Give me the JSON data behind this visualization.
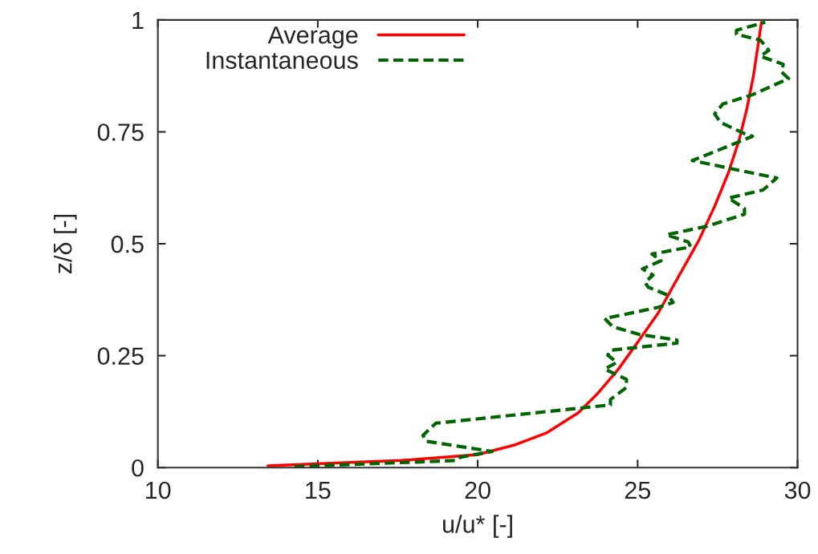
{
  "chart_data": {
    "type": "line",
    "xlabel": "u/u* [-]",
    "ylabel": "z/δ [-]",
    "xlim": [
      10,
      30
    ],
    "xticks": [
      10,
      15,
      20,
      25,
      30
    ],
    "ylim": [
      0,
      1
    ],
    "yticks": [
      0,
      0.25,
      0.5,
      0.75,
      1
    ],
    "grid": false,
    "legend": "top left",
    "marker": "none",
    "series": [
      {
        "name": "Average",
        "color": "#ff0000",
        "line_style": "solid",
        "x": [
          13.44,
          15.1,
          17.61,
          20.0,
          21.13,
          22.14,
          23.14,
          23.77,
          24.4,
          25.03,
          25.65,
          26.28,
          26.91,
          27.41,
          27.84,
          28.17,
          28.42,
          28.62,
          28.77,
          28.87
        ],
        "values": [
          0.004,
          0.009,
          0.016,
          0.029,
          0.05,
          0.077,
          0.122,
          0.167,
          0.22,
          0.283,
          0.346,
          0.427,
          0.507,
          0.584,
          0.659,
          0.731,
          0.803,
          0.875,
          0.946,
          0.995
        ]
      },
      {
        "name": "Instantaneous",
        "color": "#006400",
        "line_style": "dashed",
        "x": [
          14.27,
          19.37,
          19.45,
          20.45,
          18.37,
          18.29,
          18.69,
          24.15,
          24.15,
          24.65,
          24.65,
          23.97,
          24.35,
          24.07,
          24.15,
          26.23,
          26.23,
          25.08,
          24.22,
          23.97,
          25.65,
          26.11,
          25.95,
          25.33,
          25.23,
          25.48,
          25.15,
          25.73,
          25.45,
          26.66,
          26.58,
          25.9,
          27.16,
          28.34,
          28.34,
          27.84,
          28.92,
          29.35,
          27.91,
          26.71,
          27.66,
          28.59,
          28.34,
          27.59,
          27.41,
          27.66,
          28.59,
          29.72,
          29.5,
          29.55,
          28.84,
          29.1,
          28.84,
          28.09,
          28.09,
          28.99
        ],
        "values": [
          0.002,
          0.016,
          0.023,
          0.036,
          0.059,
          0.072,
          0.099,
          0.14,
          0.152,
          0.179,
          0.197,
          0.22,
          0.235,
          0.251,
          0.262,
          0.278,
          0.285,
          0.297,
          0.315,
          0.333,
          0.358,
          0.369,
          0.385,
          0.403,
          0.414,
          0.43,
          0.444,
          0.462,
          0.477,
          0.493,
          0.504,
          0.52,
          0.539,
          0.566,
          0.579,
          0.602,
          0.62,
          0.647,
          0.668,
          0.686,
          0.713,
          0.74,
          0.746,
          0.771,
          0.79,
          0.812,
          0.833,
          0.869,
          0.884,
          0.901,
          0.919,
          0.932,
          0.955,
          0.968,
          0.977,
          0.995
        ]
      }
    ]
  }
}
